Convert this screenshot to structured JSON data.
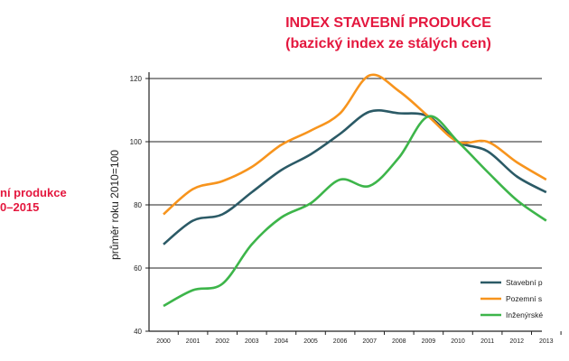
{
  "side_text": {
    "line1": "ní produkce",
    "line2": "0–2015"
  },
  "chart_data": {
    "type": "line",
    "title": "INDEX STAVEBNÍ PRODUKCE",
    "subtitle": "(bazický index ze stálých cen)",
    "ylabel": "průměr roku 2010=100",
    "xlabel": "",
    "ylim": [
      40,
      120
    ],
    "yticks": [
      "40",
      "60",
      "80",
      "100",
      "120"
    ],
    "x": [
      "2000",
      "2001",
      "2002",
      "2003",
      "2004",
      "2005",
      "2006",
      "2007",
      "2008",
      "2009",
      "2010",
      "2011",
      "2012",
      "2013"
    ],
    "grid": "horizontal",
    "legend": "bottom-right",
    "series": [
      {
        "name": "Stavební p",
        "color": "#2b5a66",
        "values": [
          67.5,
          75,
          77,
          84,
          91,
          96,
          102.5,
          109.5,
          109,
          108,
          100,
          97,
          89,
          84
        ]
      },
      {
        "name": "Pozemní s",
        "color": "#f7941d",
        "values": [
          77,
          85,
          87.5,
          92,
          99,
          103.5,
          109,
          121,
          116,
          108,
          100,
          100,
          93.5,
          88
        ]
      },
      {
        "name": "Inženýrské",
        "color": "#3db54a",
        "values": [
          48,
          53,
          55,
          67.5,
          76,
          80.5,
          88,
          86,
          95,
          108,
          100,
          90.5,
          81.5,
          75
        ]
      }
    ]
  }
}
